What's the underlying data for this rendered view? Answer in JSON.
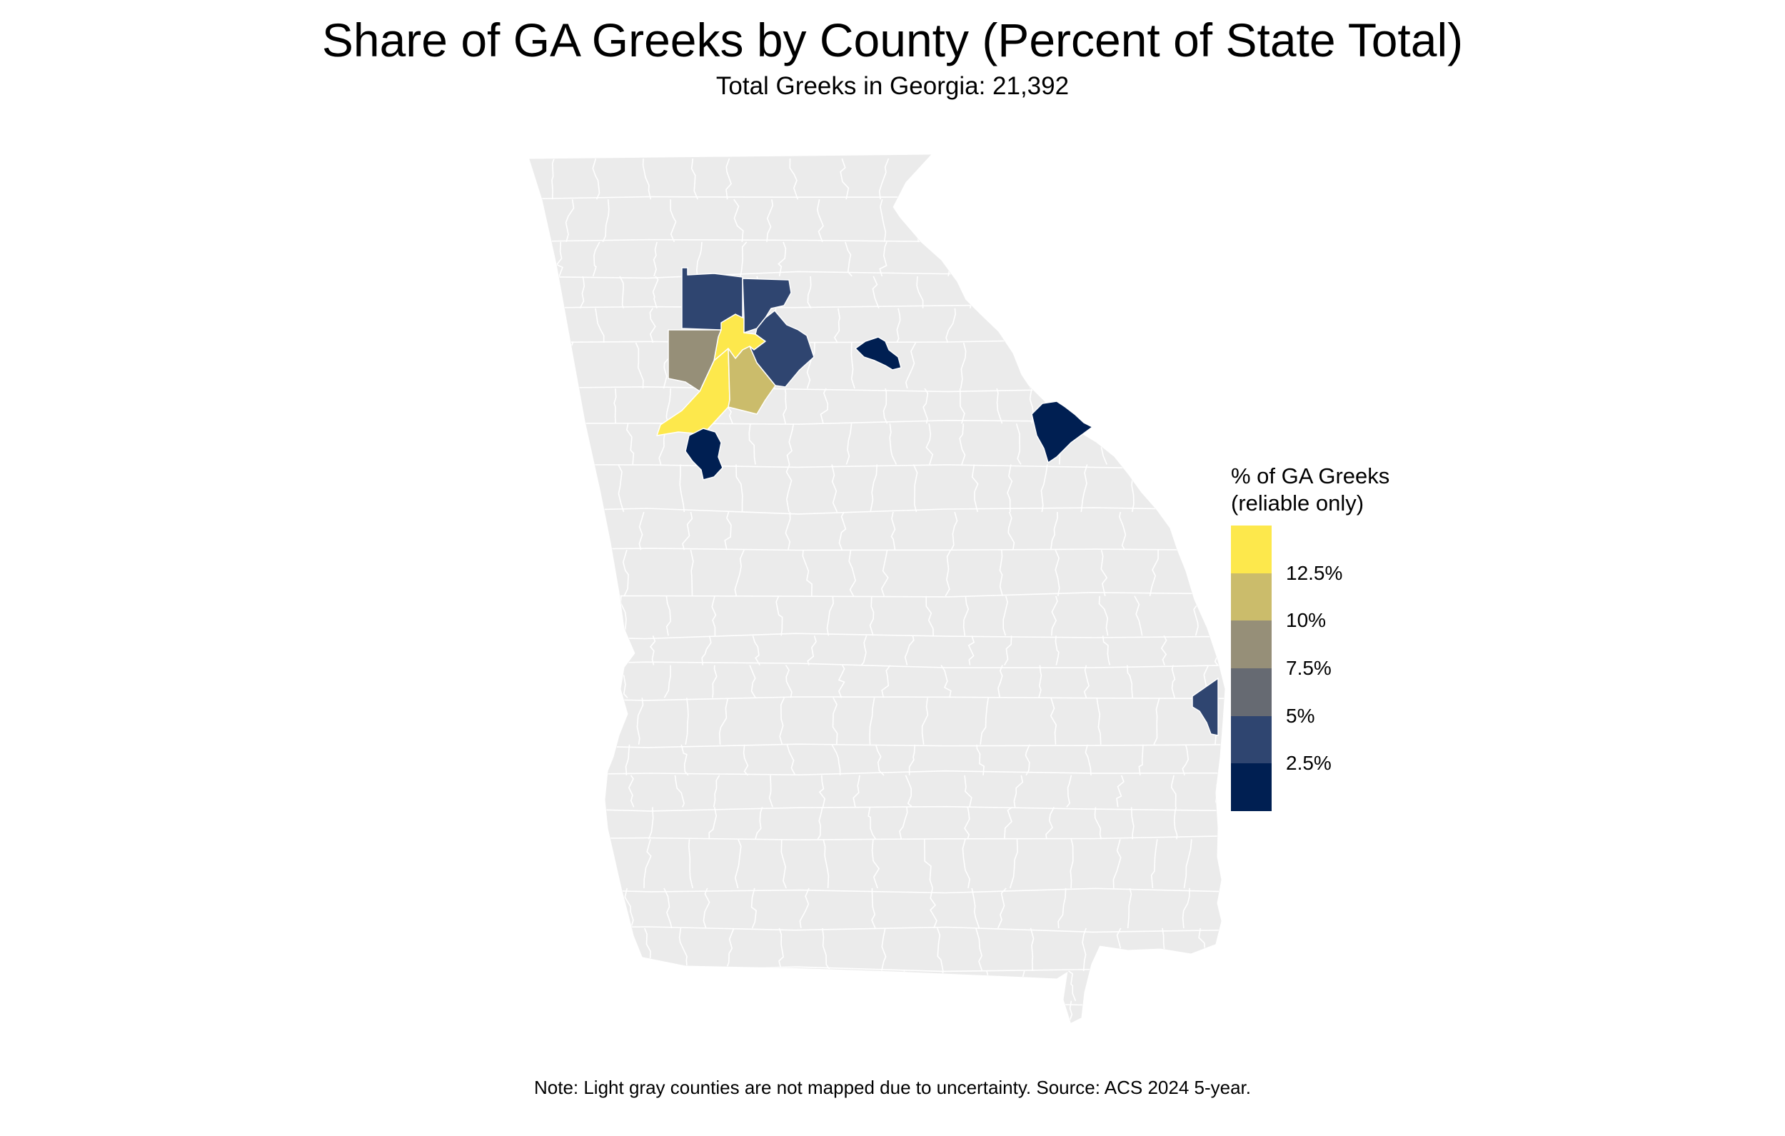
{
  "title": "Share of GA Greeks by County (Percent of State Total)",
  "subtitle": "Total Greeks in Georgia: 21,392",
  "note": "Note: Light gray counties are not mapped due to uncertainty. Source: ACS 2024 5-year.",
  "colors": {
    "background": "#ffffff",
    "unmapped_county": "#ebebeb",
    "county_border": "#ffffff"
  },
  "legend": {
    "title_line1": "% of GA Greeks",
    "title_line2": "(reliable only)",
    "scale_min_percent": 0,
    "scale_max_percent": 15,
    "bins": [
      {
        "from": 12.5,
        "to": 15,
        "color": "#fde84c"
      },
      {
        "from": 10,
        "to": 12.5,
        "color": "#cbbc6b"
      },
      {
        "from": 7.5,
        "to": 10,
        "color": "#968f78"
      },
      {
        "from": 5,
        "to": 7.5,
        "color": "#666a72"
      },
      {
        "from": 2.5,
        "to": 5,
        "color": "#2f4570"
      },
      {
        "from": 0,
        "to": 2.5,
        "color": "#001f52"
      }
    ],
    "ticks": [
      {
        "value": 12.5,
        "label": "12.5%"
      },
      {
        "value": 10,
        "label": "10%"
      },
      {
        "value": 7.5,
        "label": "7.5%"
      },
      {
        "value": 5,
        "label": "5%"
      },
      {
        "value": 2.5,
        "label": "2.5%"
      }
    ]
  },
  "highlighted_counties": [
    {
      "id": "yellow-southwest",
      "bin_color": "#fde84c"
    },
    {
      "id": "yellow-north",
      "bin_color": "#fde84c"
    },
    {
      "id": "tan",
      "bin_color": "#cbbc6b"
    },
    {
      "id": "gray-west",
      "bin_color": "#968f78"
    },
    {
      "id": "blue-northwest",
      "bin_color": "#2f4570"
    },
    {
      "id": "blue-north",
      "bin_color": "#2f4570"
    },
    {
      "id": "blue-east-metro",
      "bin_color": "#2f4570"
    },
    {
      "id": "blue-coast",
      "bin_color": "#2f4570"
    },
    {
      "id": "navy-south-metro",
      "bin_color": "#001f52"
    },
    {
      "id": "navy-athens",
      "bin_color": "#001f52"
    },
    {
      "id": "navy-augusta",
      "bin_color": "#001f52"
    }
  ]
}
